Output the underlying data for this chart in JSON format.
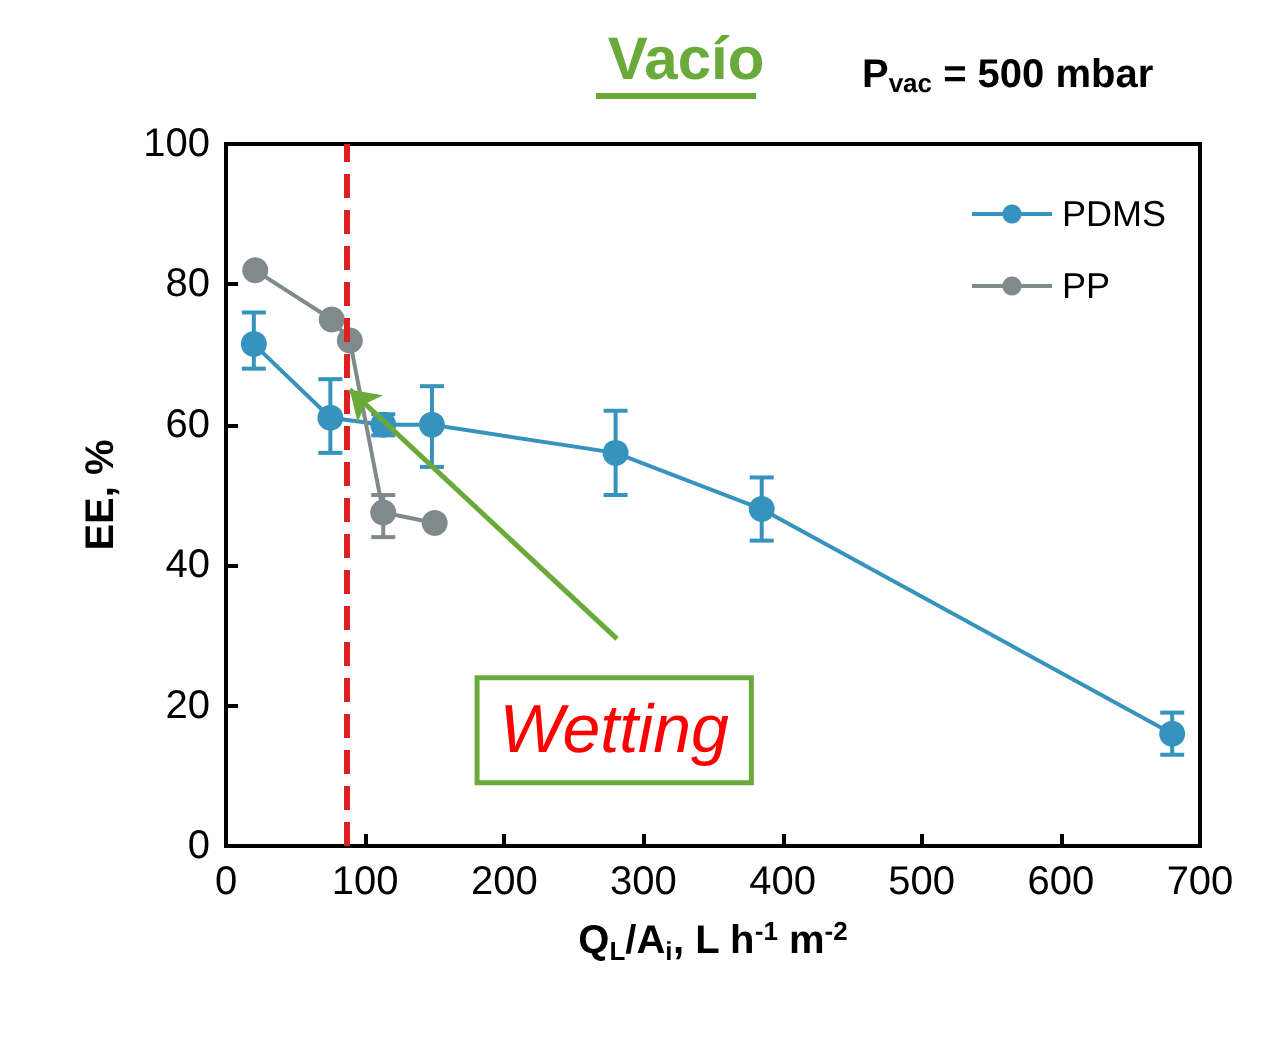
{
  "chart_data": {
    "type": "line",
    "title": "Vacío",
    "subtitle": "P$_{vac}$ = 500 mbar",
    "xlabel": "Q$_{L}$/A$_{i}$, L h$^{-1}$ m$^{-2}$",
    "ylabel": "EE, %",
    "series": [
      {
        "name": "PDMS",
        "color": "#3593bd",
        "x": [
          20,
          75,
          113,
          148,
          280,
          385,
          680
        ],
        "values": [
          71.5,
          61,
          60,
          60,
          56,
          48,
          16
        ],
        "errors": [
          [
            68,
            76
          ],
          [
            56,
            66.5
          ],
          [
            58.5,
            61.5
          ],
          [
            54,
            65.5
          ],
          [
            50,
            62
          ],
          [
            43.5,
            52.5
          ],
          [
            13,
            19
          ]
        ]
      },
      {
        "name": "PP",
        "color": "#808a8c",
        "x": [
          21,
          76,
          89,
          113,
          150
        ],
        "values": [
          82,
          75,
          72,
          47.5,
          46
        ],
        "errors": [
          null,
          null,
          null,
          [
            44,
            50
          ],
          null
        ]
      }
    ],
    "xlim": [
      0,
      700
    ],
    "xticks": [
      0,
      100,
      200,
      300,
      400,
      500,
      600,
      700
    ],
    "ylim": [
      0,
      100
    ],
    "yticks": [
      0,
      20,
      40,
      60,
      80,
      100
    ],
    "ref_lines": [
      {
        "axis": "x",
        "value": 87,
        "color": "#e02020",
        "line_style": "dashed"
      }
    ],
    "annotations": [
      {
        "text": "Wetting",
        "x": 89,
        "y": 65
      }
    ],
    "legend": "top right",
    "grid": false,
    "marker": "circle",
    "line_style": "solid"
  }
}
